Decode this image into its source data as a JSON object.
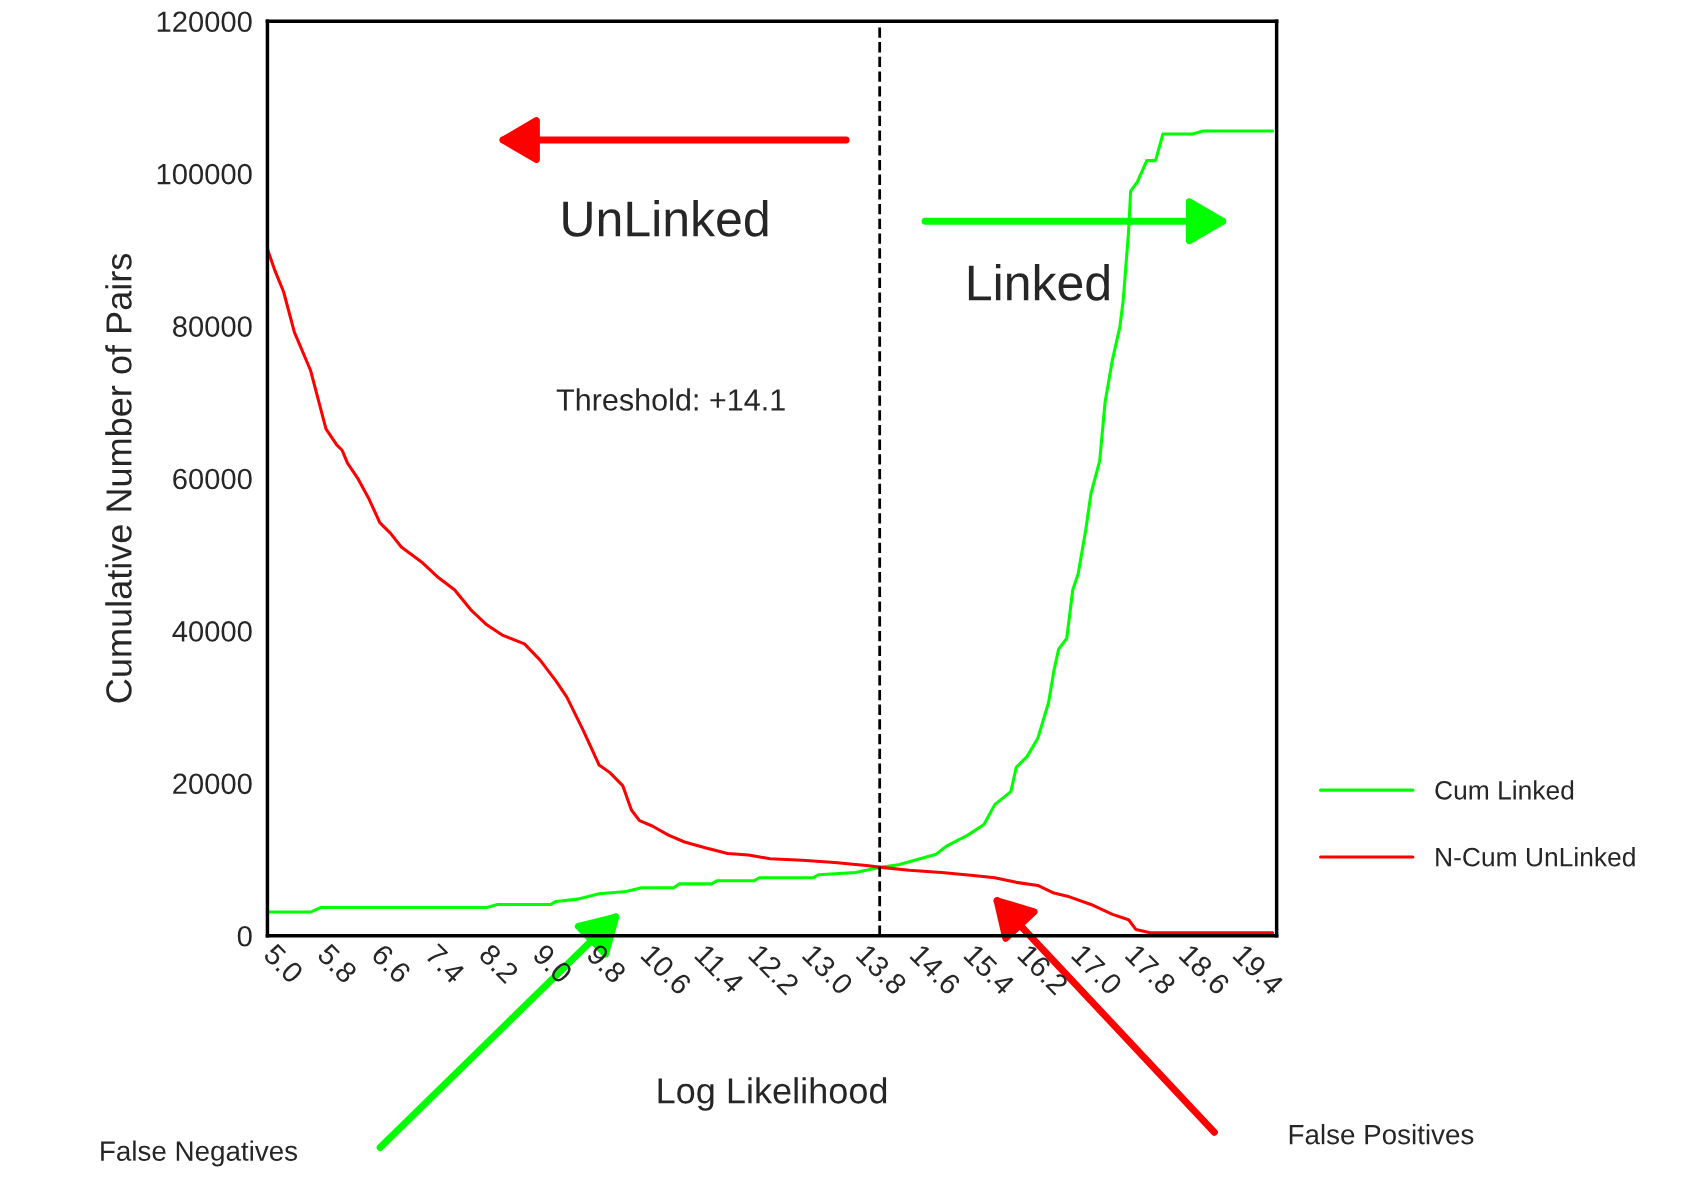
{
  "chart_data": {
    "type": "line",
    "xlabel": "Log Likelihood",
    "ylabel": "Cumulative Number of Pairs",
    "xlim": [
      5.0,
      20.0
    ],
    "ylim": [
      0,
      120000
    ],
    "xticks": [
      {
        "value": 5.0,
        "label": "5.0"
      },
      {
        "value": 5.8,
        "label": "5.8"
      },
      {
        "value": 6.6,
        "label": "6.6"
      },
      {
        "value": 7.4,
        "label": "7.4"
      },
      {
        "value": 8.2,
        "label": "8.2"
      },
      {
        "value": 9.0,
        "label": "9.0"
      },
      {
        "value": 9.8,
        "label": "9.8"
      },
      {
        "value": 10.6,
        "label": "10.6"
      },
      {
        "value": 11.4,
        "label": "11.4"
      },
      {
        "value": 12.2,
        "label": "12.2"
      },
      {
        "value": 13.0,
        "label": "13.0"
      },
      {
        "value": 13.8,
        "label": "13.8"
      },
      {
        "value": 14.6,
        "label": "14.6"
      },
      {
        "value": 15.4,
        "label": "15.4"
      },
      {
        "value": 16.2,
        "label": "16.2"
      },
      {
        "value": 17.0,
        "label": "17.0"
      },
      {
        "value": 17.8,
        "label": "17.8"
      },
      {
        "value": 18.6,
        "label": "18.6"
      },
      {
        "value": 19.4,
        "label": "19.4"
      }
    ],
    "yticks": [
      0,
      20000,
      40000,
      60000,
      80000,
      100000,
      120000
    ],
    "series": [
      {
        "name": "Cum Linked",
        "color": "#00ff00",
        "x": [
          5.0,
          5.64,
          5.79,
          8.26,
          8.42,
          9.21,
          9.29,
          9.61,
          9.93,
          10.33,
          10.56,
          11.04,
          11.12,
          11.6,
          11.68,
          12.23,
          12.31,
          13.11,
          13.19,
          13.74,
          14.06,
          14.38,
          14.7,
          14.94,
          15.1,
          15.41,
          15.65,
          15.81,
          16.05,
          16.13,
          16.29,
          16.45,
          16.61,
          16.69,
          16.76,
          16.88,
          16.97,
          17.05,
          17.16,
          17.24,
          17.37,
          17.45,
          17.56,
          17.67,
          17.72,
          17.8,
          17.83,
          17.93,
          18.07,
          18.2,
          18.31,
          18.75,
          18.91,
          19.94
        ],
        "values": [
          3100,
          3100,
          3700,
          3700,
          4100,
          4100,
          4500,
          4800,
          5500,
          5800,
          6300,
          6300,
          6800,
          6800,
          7200,
          7200,
          7600,
          7600,
          8000,
          8300,
          8900,
          9300,
          10100,
          10700,
          11800,
          13200,
          14600,
          17200,
          18900,
          22100,
          23500,
          25900,
          30600,
          34800,
          37600,
          39000,
          45400,
          47500,
          53100,
          58000,
          62300,
          70000,
          75600,
          79900,
          83400,
          92500,
          97700,
          98900,
          101700,
          101700,
          105200,
          105200,
          105600,
          105600
        ]
      },
      {
        "name": "N-Cum UnLinked",
        "color": "#ff0000",
        "x": [
          5.0,
          5.11,
          5.24,
          5.4,
          5.64,
          5.87,
          6.03,
          6.11,
          6.19,
          6.35,
          6.51,
          6.67,
          6.83,
          6.99,
          7.31,
          7.54,
          7.78,
          8.02,
          8.26,
          8.5,
          8.82,
          9.05,
          9.29,
          9.45,
          9.69,
          9.93,
          10.09,
          10.28,
          10.41,
          10.53,
          10.72,
          10.96,
          11.2,
          11.52,
          11.84,
          12.15,
          12.47,
          12.95,
          13.43,
          13.9,
          14.09,
          14.54,
          15.02,
          15.49,
          15.81,
          16.13,
          16.45,
          16.69,
          16.92,
          17.24,
          17.56,
          17.8,
          17.91,
          18.12,
          19.94
        ],
        "values": [
          90100,
          87300,
          84500,
          79200,
          74200,
          66500,
          64400,
          63700,
          62000,
          59900,
          57300,
          54200,
          52800,
          51000,
          48900,
          47000,
          45400,
          42800,
          40800,
          39400,
          38300,
          36200,
          33400,
          31300,
          27000,
          22400,
          21400,
          19700,
          16500,
          15100,
          14400,
          13200,
          12300,
          11500,
          10800,
          10600,
          10100,
          9900,
          9600,
          9200,
          9000,
          8600,
          8300,
          7900,
          7600,
          7000,
          6600,
          5600,
          5100,
          4100,
          2800,
          2100,
          800,
          400,
          400
        ]
      }
    ],
    "ref_lines": [
      {
        "axis": "x",
        "value": 14.1,
        "color": "#000000",
        "line_style": "dashed"
      }
    ],
    "annotations": [
      "UnLinked",
      "Linked",
      "Threshold: +14.1",
      "False Negatives",
      "False Positives"
    ],
    "legend": "right",
    "grid": false,
    "marker": "none",
    "line_style": "solid"
  }
}
